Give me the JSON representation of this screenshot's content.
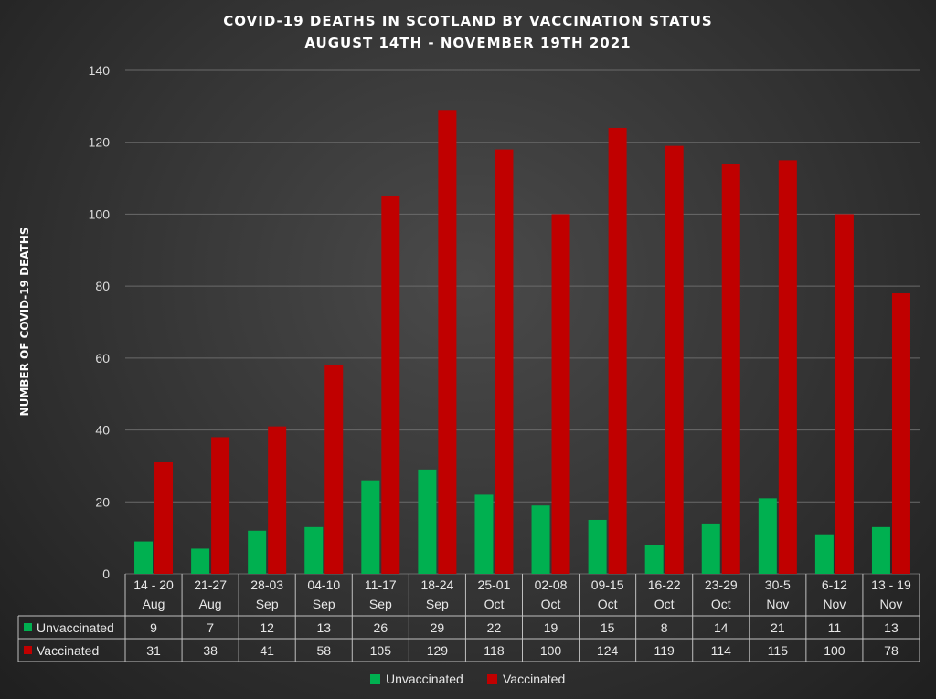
{
  "chart_data": {
    "type": "bar",
    "title": "COVID-19 DEATHS IN SCOTLAND BY VACCINATION STATUS",
    "subtitle": "AUGUST 14TH - NOVEMBER 19TH 2021",
    "ylabel": "NUMBER OF COVID-19 DEATHS",
    "ylim": [
      0,
      140
    ],
    "yticks": [
      0,
      20,
      40,
      60,
      80,
      100,
      120,
      140
    ],
    "grid": true,
    "legend_position": "bottom",
    "categories": [
      [
        "14 - 20",
        "Aug"
      ],
      [
        "21-27",
        "Aug"
      ],
      [
        "28-03",
        "Sep"
      ],
      [
        "04-10",
        "Sep"
      ],
      [
        "11-17",
        "Sep"
      ],
      [
        "18-24",
        "Sep"
      ],
      [
        "25-01",
        "Oct"
      ],
      [
        "02-08",
        "Oct"
      ],
      [
        "09-15",
        "Oct"
      ],
      [
        "16-22",
        "Oct"
      ],
      [
        "23-29",
        "Oct"
      ],
      [
        "30-5",
        "Nov"
      ],
      [
        "6-12",
        "Nov"
      ],
      [
        "13 - 19",
        "Nov"
      ]
    ],
    "series": [
      {
        "name": "Unvaccinated",
        "color": "#00b050",
        "values": [
          9,
          7,
          12,
          13,
          26,
          29,
          22,
          19,
          15,
          8,
          14,
          21,
          11,
          13
        ]
      },
      {
        "name": "Vaccinated",
        "color": "#c00000",
        "values": [
          31,
          38,
          41,
          58,
          105,
          129,
          118,
          100,
          124,
          119,
          114,
          115,
          100,
          78
        ]
      }
    ]
  }
}
